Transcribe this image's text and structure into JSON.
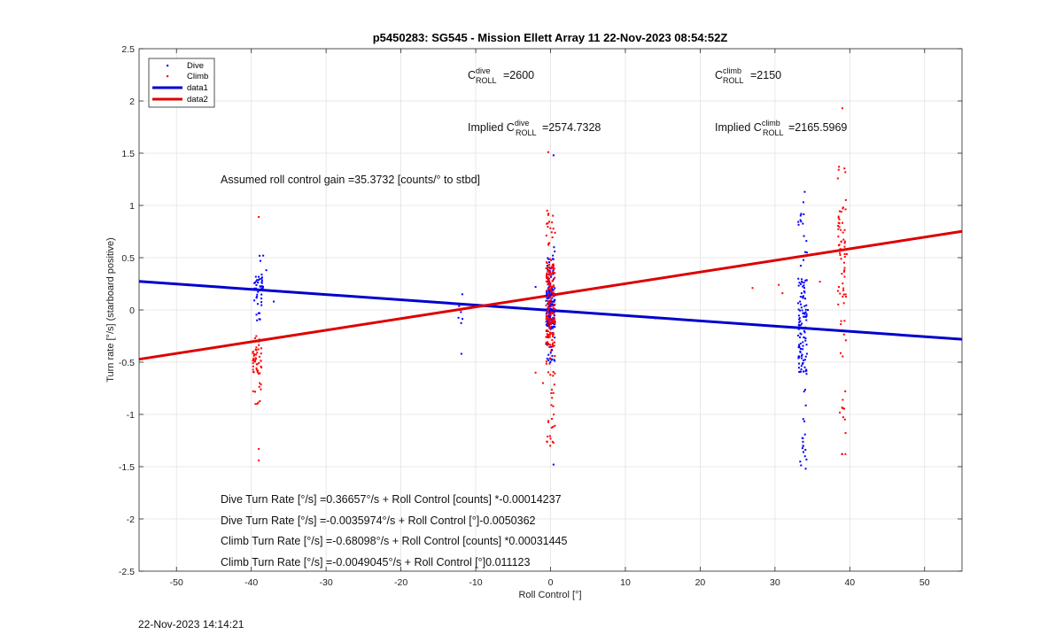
{
  "footer_timestamp": "22-Nov-2023 14:14:21",
  "annotations": {
    "c_dive": {
      "base": "C",
      "sup": "dive",
      "sub": "ROLL",
      "value": "=2600"
    },
    "c_climb": {
      "base": "C",
      "sup": "climb",
      "sub": "ROLL",
      "value": "=2150"
    },
    "implied_dive": {
      "prefix": "Implied ",
      "base": "C",
      "sup": "dive",
      "sub": "ROLL",
      "value": "=2574.7328"
    },
    "implied_climb": {
      "prefix": "Implied ",
      "base": "C",
      "sup": "climb",
      "sub": "ROLL",
      "value": "=2165.5969"
    },
    "gain": "Assumed roll control gain =35.3732 [counts/° to stbd]",
    "eq1": "Dive Turn Rate [°/s] =0.36657°/s + Roll Control [counts] *-0.00014237",
    "eq2": "Dive Turn Rate [°/s] =-0.0035974°/s + Roll Control [°]-0.0050362",
    "eq3": "Climb Turn Rate [°/s] =-0.68098°/s + Roll Control [counts] *0.00031445",
    "eq4": "Climb Turn Rate [°/s] =-0.0049045°/s + Roll Control [°]0.011123"
  },
  "chart_data": {
    "type": "scatter",
    "title": "p5450283: SG545 - Mission Ellett Array 11 22-Nov-2023 08:54:52Z",
    "xlabel": "Roll Control [°]",
    "ylabel": "Turn rate [°/s] (starboard positive)",
    "xlim": [
      -55,
      55
    ],
    "ylim": [
      -2.5,
      2.5
    ],
    "xticks": [
      -50,
      -40,
      -30,
      -20,
      -10,
      0,
      10,
      20,
      30,
      40,
      50
    ],
    "yticks": [
      -2.5,
      -2,
      -1.5,
      -1,
      -0.5,
      0,
      0.5,
      1,
      1.5,
      2,
      2.5
    ],
    "grid": true,
    "legend_location": "top-left",
    "series": [
      {
        "name": "Dive",
        "kind": "points",
        "color": "#0000ff",
        "clusters": [
          {
            "x": -39,
            "ymin": -0.1,
            "ymax": 0.52,
            "ymean": 0.22,
            "n": 45
          },
          {
            "x": -12,
            "ymin": -0.42,
            "ymax": 0.15,
            "ymean": -0.05,
            "n": 7
          },
          {
            "x": 0,
            "ymin": -0.5,
            "ymax": 0.6,
            "ymean": 0.02,
            "n": 180
          },
          {
            "x": 33.7,
            "ymin": -1.52,
            "ymax": 1.13,
            "ymean": -0.15,
            "n": 140
          }
        ],
        "points": [
          [
            0.4,
            1.48
          ],
          [
            0.4,
            -1.48
          ],
          [
            -38,
            0.38
          ],
          [
            -37,
            0.08
          ],
          [
            34.4,
            0.0
          ],
          [
            14,
            -0.08
          ],
          [
            -2,
            0.22
          ]
        ]
      },
      {
        "name": "Climb",
        "kind": "points",
        "color": "#ff0000",
        "clusters": [
          {
            "x": -39.2,
            "ymin": -0.9,
            "ymax": -0.25,
            "ymean": -0.5,
            "n": 55
          },
          {
            "x": 0,
            "ymin": -1.3,
            "ymax": 0.95,
            "ymean": 0.05,
            "n": 220
          },
          {
            "x": 39,
            "ymin": -1.38,
            "ymax": 1.37,
            "ymean": 0.52,
            "n": 75
          }
        ],
        "points": [
          [
            -39,
            0.89
          ],
          [
            -39,
            -1.33
          ],
          [
            -39,
            -1.44
          ],
          [
            -0.3,
            1.51
          ],
          [
            -2,
            -0.6
          ],
          [
            27,
            0.21
          ],
          [
            30.5,
            0.24
          ],
          [
            31,
            0.16
          ],
          [
            39,
            1.93
          ],
          [
            39,
            -1.38
          ],
          [
            -1,
            -0.7
          ],
          [
            36,
            0.27
          ],
          [
            -12,
            0.0
          ]
        ]
      },
      {
        "name": "data1",
        "kind": "line",
        "color": "#0000cc",
        "x": [
          -55,
          55
        ],
        "y": [
          0.273,
          -0.281
        ]
      },
      {
        "name": "data2",
        "kind": "line",
        "color": "#dd0000",
        "x": [
          -55,
          55
        ],
        "y": [
          -0.472,
          0.752
        ]
      }
    ]
  }
}
